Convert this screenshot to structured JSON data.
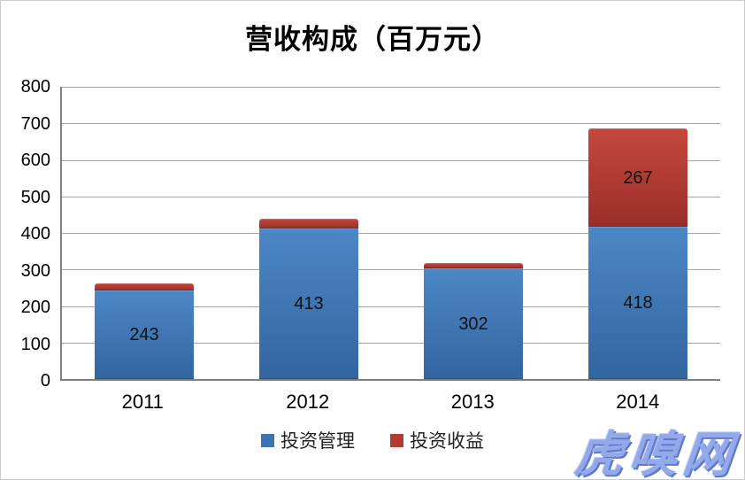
{
  "chart_data": {
    "type": "bar",
    "stacked": true,
    "title": "营收构成（百万元）",
    "categories": [
      "2011",
      "2012",
      "2013",
      "2014"
    ],
    "series": [
      {
        "name": "投资管理",
        "color": "#3d72b4",
        "gradient_top": "#4c87c6",
        "gradient_bottom": "#33659f",
        "values": [
          243,
          413,
          302,
          418
        ],
        "labels": [
          "243",
          "413",
          "302",
          "418"
        ]
      },
      {
        "name": "投资收益",
        "color": "#b23a31",
        "gradient_top": "#c5483d",
        "gradient_bottom": "#992e28",
        "values": [
          20,
          27,
          15,
          267
        ],
        "labels": [
          "",
          "",
          "",
          "267"
        ]
      }
    ],
    "ylim": [
      0,
      800
    ],
    "yticks": [
      0,
      100,
      200,
      300,
      400,
      500,
      600,
      700,
      800
    ],
    "grid": true,
    "legend_position": "bottom"
  },
  "watermark": {
    "text": "虎嗅网",
    "color": "#93a9e9"
  }
}
